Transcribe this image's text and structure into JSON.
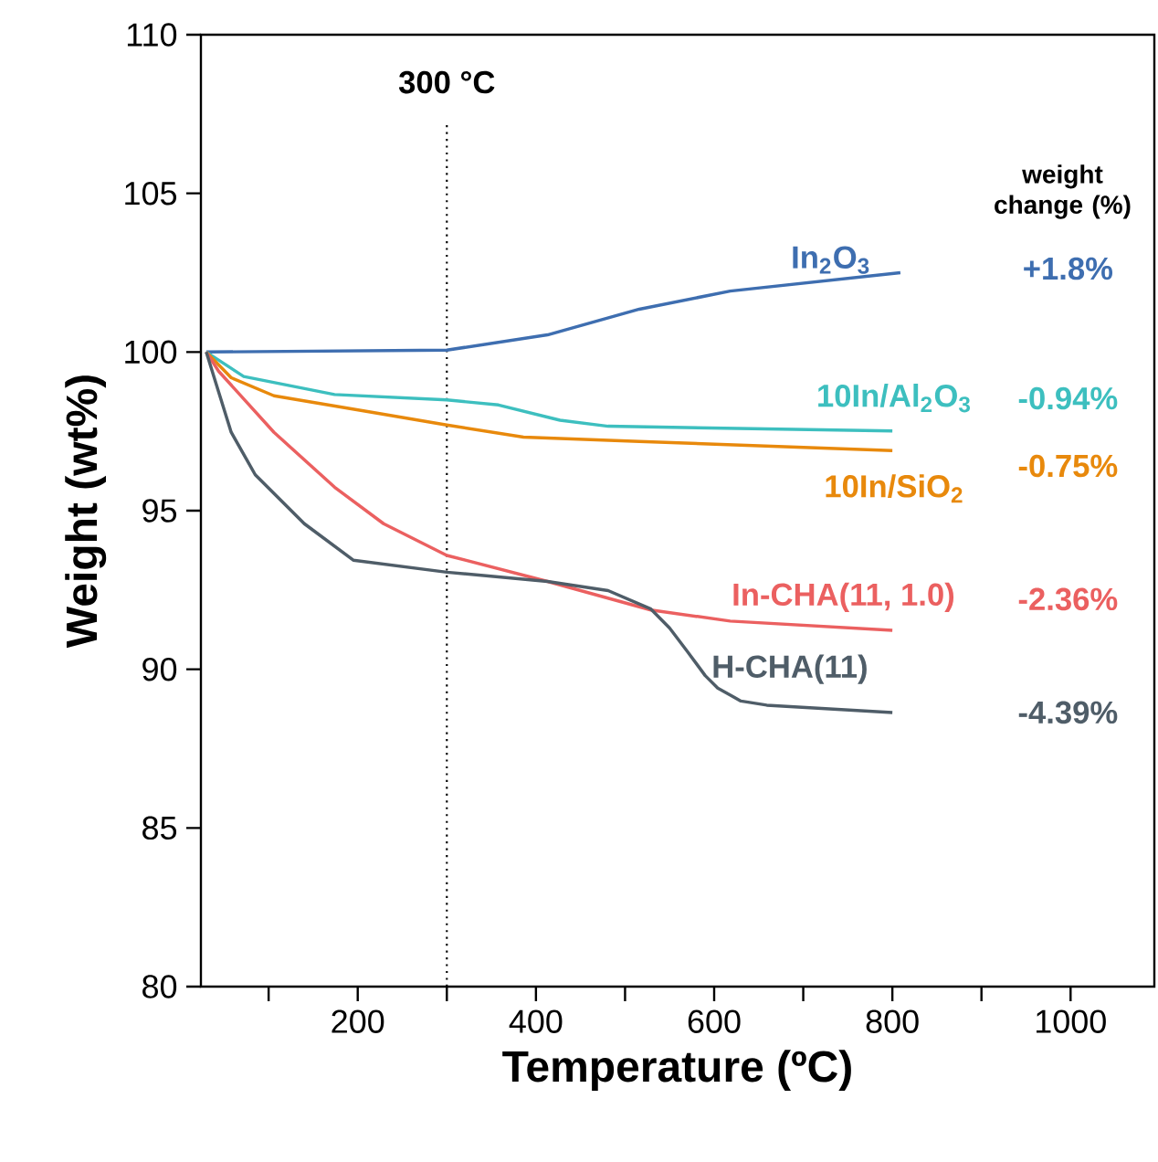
{
  "chart_data": {
    "type": "line",
    "xlabel": "Temperature (ºC)",
    "ylabel": "Weight (wt%)",
    "xlim": [
      24,
      1094
    ],
    "ylim": [
      80,
      110
    ],
    "xticks": [
      {
        "value": 100,
        "label": null
      },
      200,
      {
        "value": 300,
        "label": null
      },
      400,
      {
        "value": 500,
        "label": null
      },
      600,
      {
        "value": 700,
        "label": null
      },
      800,
      {
        "value": 900,
        "label": null
      },
      1000
    ],
    "yticks": [
      80,
      85,
      90,
      95,
      100,
      105,
      110
    ],
    "grid": false,
    "marker": "none",
    "line_style": "solid",
    "ref_lines": [
      {
        "axis": "x",
        "value": 300,
        "label": "300 °C",
        "color": "#000000",
        "line_style": "dotted"
      }
    ],
    "annotations": [
      "weight change (%)",
      "+1.8%",
      "-0.94%",
      "-0.75%",
      "-2.36%",
      "-4.39%"
    ],
    "series": [
      {
        "name": "In$_{2}$O$_{3}$",
        "color": "#3e6eb0",
        "x": [
          30,
          300,
          413,
          516,
          618,
          809
        ],
        "values": [
          100,
          100.06,
          100.54,
          101.35,
          101.92,
          102.5
        ]
      },
      {
        "name": "10In/Al$_{2}$O$_{3}$",
        "color": "#3dbfbf",
        "x": [
          30,
          72,
          174,
          300,
          358,
          427,
          481,
          800
        ],
        "values": [
          100,
          99.23,
          98.66,
          98.49,
          98.33,
          97.85,
          97.66,
          97.51
        ]
      },
      {
        "name": "10In/SiO$_{2}$",
        "color": "#e8890c",
        "x": [
          30,
          58,
          106,
          208,
          300,
          386,
          516,
          800
        ],
        "values": [
          100,
          99.19,
          98.62,
          98.14,
          97.7,
          97.32,
          97.18,
          96.89
        ]
      },
      {
        "name": "In-CHA(11, 1.0)",
        "color": "#eb6060",
        "x": [
          30,
          44,
          106,
          174,
          229,
          300,
          413,
          529,
          618,
          800
        ],
        "values": [
          100,
          99.39,
          97.47,
          95.74,
          94.59,
          93.59,
          92.77,
          91.87,
          91.52,
          91.23
        ]
      },
      {
        "name": "H-CHA(11)",
        "color": "#4f5d68",
        "x": [
          30,
          41,
          58,
          85,
          140,
          195,
          300,
          413,
          481,
          529,
          550,
          570,
          590,
          604,
          630,
          659,
          800
        ],
        "values": [
          100,
          99.0,
          97.47,
          96.13,
          94.59,
          93.44,
          93.06,
          92.77,
          92.48,
          91.9,
          91.3,
          90.56,
          89.8,
          89.41,
          89.0,
          88.87,
          88.64
        ]
      }
    ]
  }
}
